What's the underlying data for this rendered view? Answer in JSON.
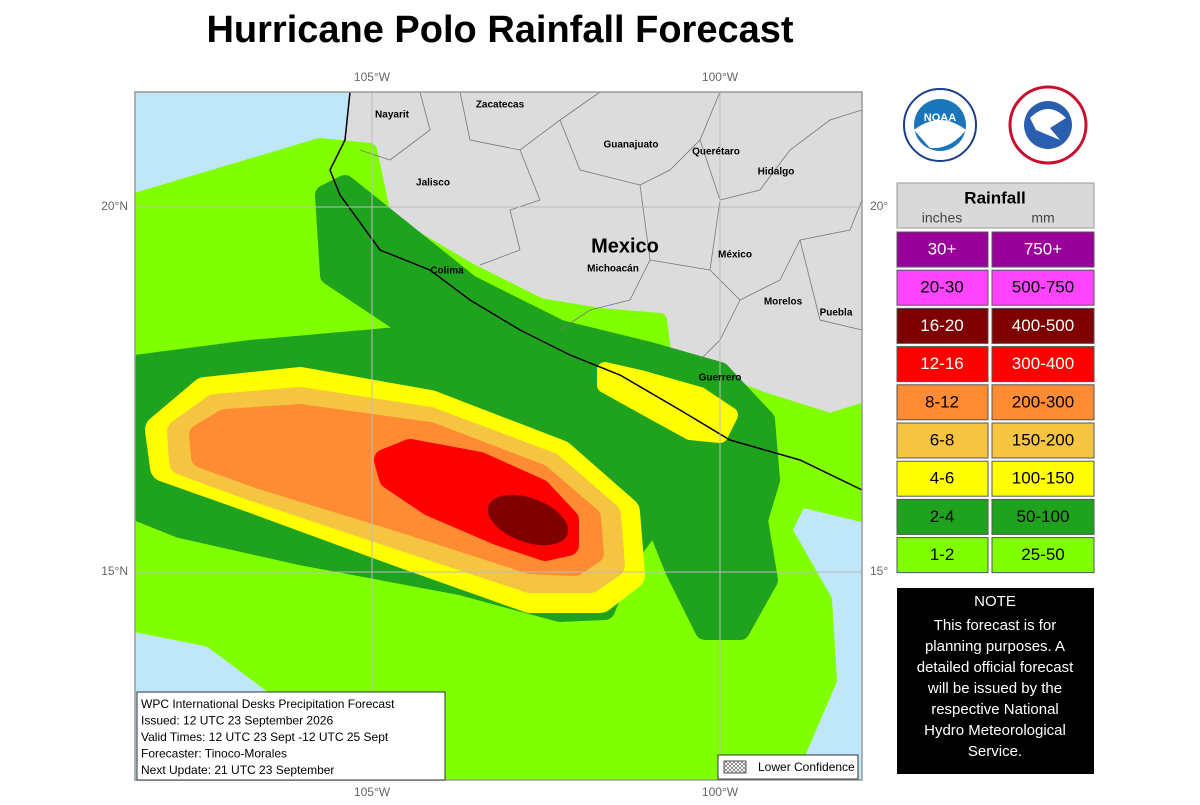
{
  "title": "Hurricane Polo Rainfall Forecast",
  "map": {
    "lon_labels_top": [
      "105°W",
      "100°W"
    ],
    "lon_labels_bottom": [
      "105°W",
      "100°W"
    ],
    "lat_labels_left": [
      "20°N",
      "15°N"
    ],
    "lat_labels_right": [
      "20°",
      "15°"
    ],
    "country": "Mexico",
    "places": [
      "Nayarit",
      "Zacatecas",
      "Guanajuato",
      "Querétaro",
      "Hidalgo",
      "Jalisco",
      "Michoacán",
      "México",
      "Colima",
      "Morelos",
      "Puebla",
      "Guerrero"
    ]
  },
  "logos": {
    "noaa": "NOAA"
  },
  "legend": {
    "title": "Rainfall",
    "units": [
      "inches",
      "mm"
    ],
    "rows": [
      {
        "inches": "30+",
        "mm": "750+",
        "color": "#990099"
      },
      {
        "inches": "20-30",
        "mm": "500-750",
        "color": "#ff44ff"
      },
      {
        "inches": "16-20",
        "mm": "400-500",
        "color": "#7f0000"
      },
      {
        "inches": "12-16",
        "mm": "300-400",
        "color": "#ff0000"
      },
      {
        "inches": "8-12",
        "mm": "200-300",
        "color": "#ff8c33"
      },
      {
        "inches": "6-8",
        "mm": "150-200",
        "color": "#f5c542"
      },
      {
        "inches": "4-6",
        "mm": "100-150",
        "color": "#ffff00"
      },
      {
        "inches": "2-4",
        "mm": "50-100",
        "color": "#1fa31f"
      },
      {
        "inches": "1-2",
        "mm": "25-50",
        "color": "#7fff00"
      }
    ]
  },
  "note": {
    "title": "NOTE",
    "lines": [
      "This forecast is for",
      "planning purposes. A",
      "detailed official forecast",
      "will be issued by the",
      "respective National",
      "Hydro Meteorological",
      "Service."
    ]
  },
  "info": {
    "lines": [
      "WPC International Desks Precipitation Forecast",
      "Issued: 12 UTC 23 September 2026",
      "Valid Times: 12 UTC 23 Sept -12 UTC 25 Sept",
      "Forecaster: Tinoco-Morales",
      "Next Update:  21 UTC 23 September"
    ]
  },
  "lower_confidence": "Lower Confidence"
}
